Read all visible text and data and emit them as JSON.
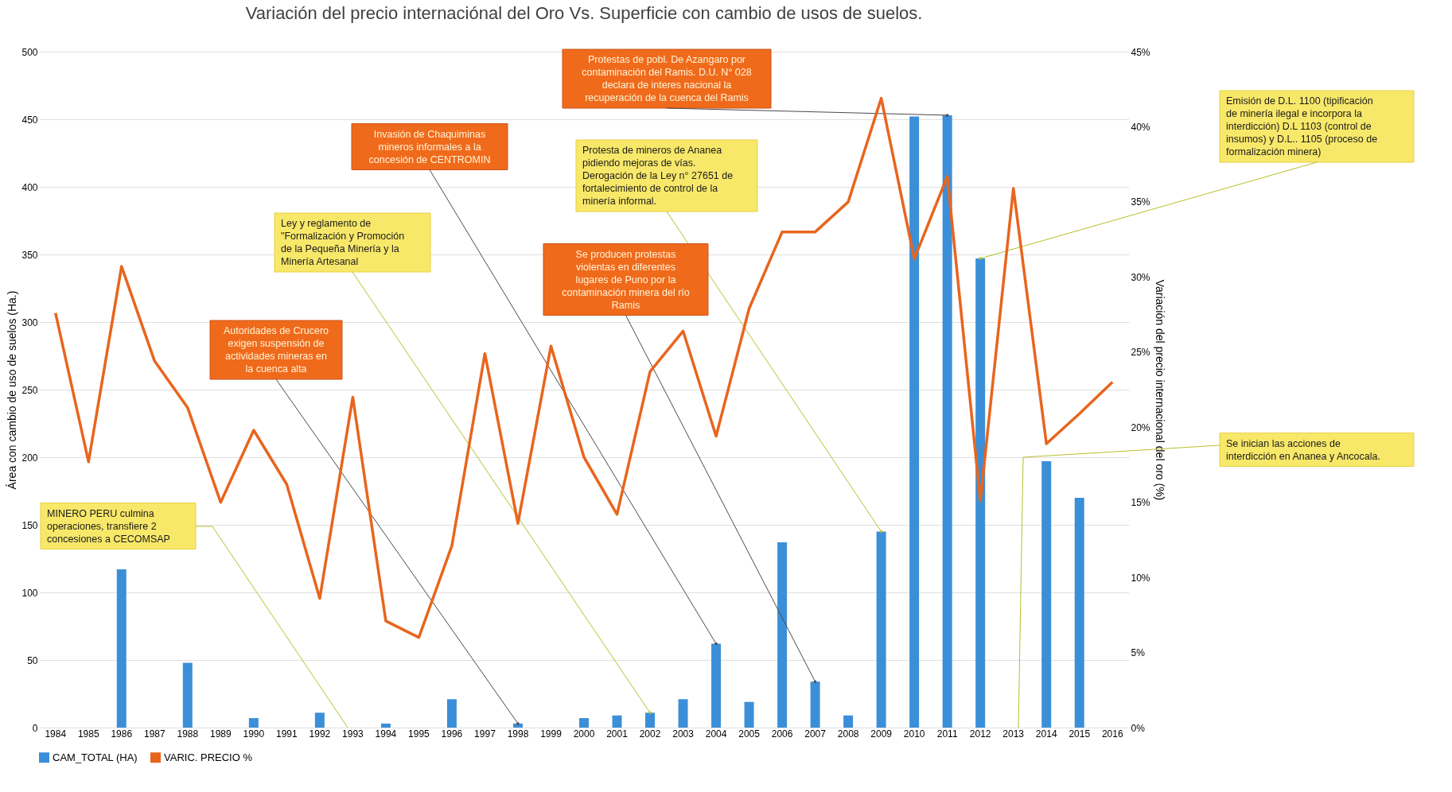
{
  "chart_data": {
    "type": "bar",
    "title": "Variación del precio internaciónal del Oro Vs. Superficie con cambio de usos de suelos.",
    "ylabel": "Área con cambio de uso de suelos (Ha.)",
    "y2label": "Variación del precio internacional del oro (%)",
    "categories": [
      "1984",
      "1985",
      "1986",
      "1987",
      "1988",
      "1989",
      "1990",
      "1991",
      "1992",
      "1993",
      "1994",
      "1995",
      "1996",
      "1997",
      "1998",
      "1999",
      "2000",
      "2001",
      "2002",
      "2003",
      "2004",
      "2005",
      "2006",
      "2007",
      "2008",
      "2009",
      "2010",
      "2011",
      "2012",
      "2013",
      "2014",
      "2015",
      "2016"
    ],
    "series": [
      {
        "name": "CAM_TOTAL (HA)",
        "color": "#3b8fd8",
        "values": [
          null,
          null,
          117,
          null,
          48,
          null,
          7,
          null,
          11,
          null,
          3,
          null,
          21,
          null,
          3,
          null,
          7,
          9,
          11,
          21,
          62,
          19,
          137,
          34,
          9,
          145,
          452,
          453,
          347,
          null,
          197,
          170,
          null
        ]
      },
      {
        "name": "VARIC. PRECIO %",
        "type": "line",
        "axis": "y2",
        "color": "#e8651e",
        "values": [
          27.6,
          17.7,
          30.7,
          24.4,
          21.3,
          15.0,
          19.8,
          16.2,
          8.6,
          22.0,
          7.1,
          6.0,
          12.1,
          24.9,
          13.6,
          25.4,
          18.0,
          14.2,
          23.7,
          26.4,
          19.4,
          27.9,
          33.0,
          33.0,
          35.0,
          41.9,
          31.2,
          36.7,
          15.1,
          35.9,
          18.9,
          20.9,
          23.0
        ]
      }
    ],
    "ylim": [
      0,
      500
    ],
    "yticks": [
      0,
      50,
      100,
      150,
      200,
      250,
      300,
      350,
      400,
      450,
      500
    ],
    "y2lim": [
      0,
      45
    ],
    "y2ticks": [
      {
        "value": 0,
        "label": "0%"
      },
      {
        "value": 5,
        "label": "5%"
      },
      {
        "value": 10,
        "label": "10%"
      },
      {
        "value": 15,
        "label": "15%"
      },
      {
        "value": 20,
        "label": "20%"
      },
      {
        "value": 25,
        "label": "25%"
      },
      {
        "value": 30,
        "label": "30%"
      },
      {
        "value": 35,
        "label": "35%"
      },
      {
        "value": 40,
        "label": "40%"
      },
      {
        "value": 45,
        "label": "45%"
      }
    ],
    "grid": "y",
    "legend": "bottom",
    "annotations": [
      "MINERO PERU culmina operaciones, transfiere 2 concesiones a CECOMSAP",
      {
        "text": "Autoridades de Crucero exigen suspensión de actividades mineras en la cuenca alta",
        "x": "1998",
        "y": 3
      },
      {
        "text": "Ley y reglamento de \"Formalización y Promoción de la Pequeña Minería y la Minería Artesanal",
        "x": "2002",
        "y": 11
      },
      {
        "text": "Invasión de Chaquiminas mineros informales a la concesión de CENTROMIN",
        "x": "2004",
        "y": 62
      },
      {
        "text": "Protestas de pobl. De Azangaro por contaminación del Ramis. D.U. N° 028 declara de interes nacional la recuperación de la cuenca del Ramis",
        "x": "2011",
        "y": 453
      },
      {
        "text": "Protesta de mineros de Ananea pidiendo mejoras de vías. Derogación de la Ley n° 27651 de fortalecimiento de control de la minería informal.",
        "x": "2009",
        "y": 145
      },
      {
        "text": "Se producen protestas violentas en diferentes lugares de Puno por la contaminación minera del río Ramis",
        "x": "2007",
        "y": 34
      },
      {
        "text": "Emisión de D.L. 1100 (tipificación de minería ilegal e incorpora la interdicción) D.L 1103 (control de insumos) y D.L.. 1105 (proceso de formalización minera)",
        "x": "2012",
        "y": 347
      },
      "Se inician las acciones de interdicción en Ananea y Ancocala."
    ]
  }
}
